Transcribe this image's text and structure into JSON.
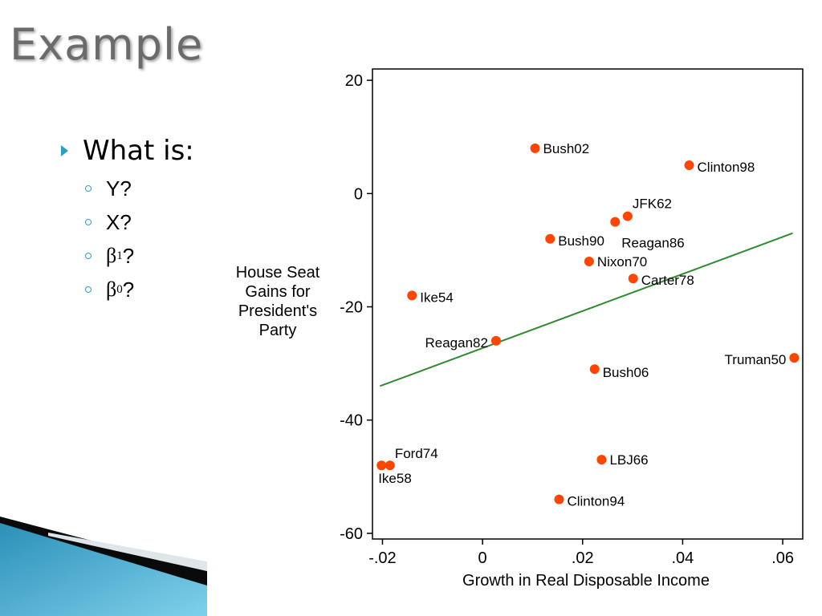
{
  "slide": {
    "title": "Example",
    "question": "What is:",
    "sub_items": [
      {
        "symbol": "Y",
        "subscript": "",
        "suffix": "?"
      },
      {
        "symbol": "X",
        "subscript": "",
        "suffix": "?"
      },
      {
        "symbol": "β",
        "subscript": "1",
        "suffix": "?"
      },
      {
        "symbol": "β",
        "subscript": "0",
        "suffix": "?"
      }
    ],
    "colors": {
      "accent": "#2aa0c8",
      "point": "#ff4500",
      "line": "#2e8b2e"
    }
  },
  "chart_data": {
    "type": "scatter",
    "title": "",
    "xlabel": "Growth in Real Disposable Income",
    "ylabel_lines": [
      "House Seat",
      "Gains for",
      "President's",
      "Party"
    ],
    "xlim": [
      -0.022,
      0.064
    ],
    "ylim": [
      -61,
      22
    ],
    "xticks": [
      -0.02,
      0,
      0.02,
      0.04,
      0.06
    ],
    "xtick_labels": [
      "-.02",
      "0",
      ".02",
      ".04",
      ".06"
    ],
    "yticks": [
      20,
      0,
      -20,
      -40,
      -60
    ],
    "ytick_labels": [
      "20",
      "0",
      "-20",
      "-40",
      "-60"
    ],
    "grid": false,
    "points": [
      {
        "label": "Bush02",
        "x": 0.0105,
        "y": 8
      },
      {
        "label": "Clinton98",
        "x": 0.0413,
        "y": 5
      },
      {
        "label": "JFK62",
        "x": 0.029,
        "y": -4
      },
      {
        "label": "Reagan86",
        "x": 0.0265,
        "y": -5
      },
      {
        "label": "Bush90",
        "x": 0.0135,
        "y": -8
      },
      {
        "label": "Nixon70",
        "x": 0.0213,
        "y": -12
      },
      {
        "label": "Carter78",
        "x": 0.0301,
        "y": -15
      },
      {
        "label": "Ike54",
        "x": -0.0141,
        "y": -18
      },
      {
        "label": "Reagan82",
        "x": 0.0027,
        "y": -26
      },
      {
        "label": "Truman50",
        "x": 0.0623,
        "y": -29
      },
      {
        "label": "Bush06",
        "x": 0.0224,
        "y": -31
      },
      {
        "label": "Ford74",
        "x": -0.0185,
        "y": -48
      },
      {
        "label": "Ike58",
        "x": -0.0202,
        "y": -48
      },
      {
        "label": "LBJ66",
        "x": 0.0238,
        "y": -47
      },
      {
        "label": "Clinton94",
        "x": 0.0153,
        "y": -54
      }
    ],
    "fit_line": {
      "x": [
        -0.0205,
        0.062
      ],
      "y": [
        -34,
        -7
      ]
    }
  }
}
